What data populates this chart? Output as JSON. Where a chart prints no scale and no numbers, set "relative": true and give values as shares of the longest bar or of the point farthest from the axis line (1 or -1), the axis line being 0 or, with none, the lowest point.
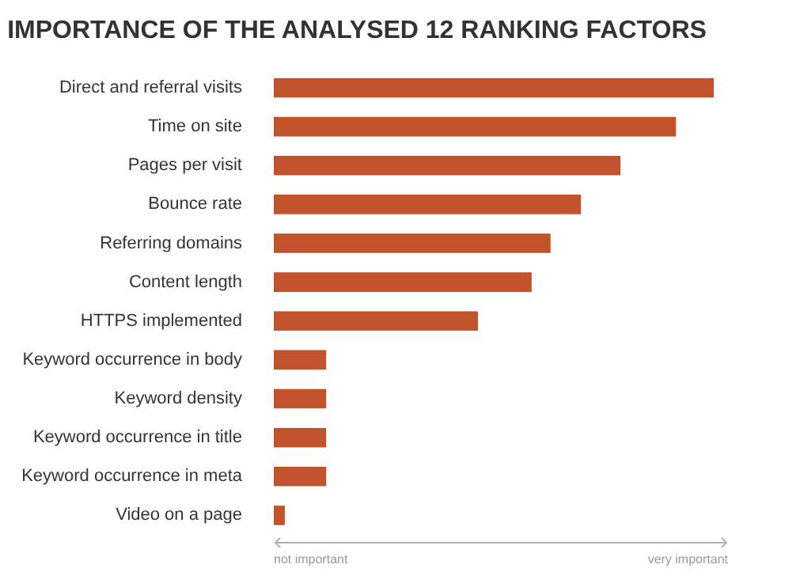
{
  "chart_data": {
    "type": "bar",
    "orientation": "horizontal",
    "relative": true,
    "title": "IMPORTANCE OF THE ANALYSED 12 RANKING FACTORS",
    "categories": [
      "Direct and referral visits",
      "Time on site",
      "Pages per visit",
      "Bounce rate",
      "Referring domains",
      "Content length",
      "HTTPS implemented",
      "Keyword occurrence in body",
      "Keyword density",
      "Keyword occurrence in title",
      "Keyword occurrence in meta",
      "Video on a page"
    ],
    "values": [
      1,
      0.914,
      0.788,
      0.698,
      0.629,
      0.586,
      0.464,
      0.119,
      0.119,
      0.119,
      0.119,
      0.025
    ],
    "color": "#c0532b",
    "annotations": [
      "not important",
      "very important"
    ],
    "legend": false
  }
}
